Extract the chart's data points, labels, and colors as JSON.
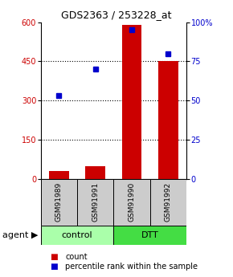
{
  "title": "GDS2363 / 253228_at",
  "samples": [
    "GSM91989",
    "GSM91991",
    "GSM91990",
    "GSM91992"
  ],
  "counts": [
    28,
    48,
    590,
    450
  ],
  "percentiles": [
    53,
    70,
    95,
    80
  ],
  "bar_color": "#cc0000",
  "dot_color": "#0000cc",
  "left_ylim": [
    0,
    600
  ],
  "right_ylim": [
    0,
    100
  ],
  "left_yticks": [
    0,
    150,
    300,
    450,
    600
  ],
  "right_yticks": [
    0,
    25,
    50,
    75,
    100
  ],
  "right_yticklabels": [
    "0",
    "25",
    "50",
    "75",
    "100%"
  ],
  "grid_values": [
    150,
    300,
    450
  ],
  "bar_width": 0.55,
  "sample_box_color": "#cccccc",
  "agent_row_color_control": "#aaffaa",
  "agent_row_color_dtt": "#44dd44",
  "agent_label": "agent",
  "legend_count_label": "count",
  "legend_pct_label": "percentile rank within the sample",
  "title_fontsize": 9,
  "tick_fontsize": 7,
  "sample_fontsize": 6.5,
  "agent_fontsize": 8
}
